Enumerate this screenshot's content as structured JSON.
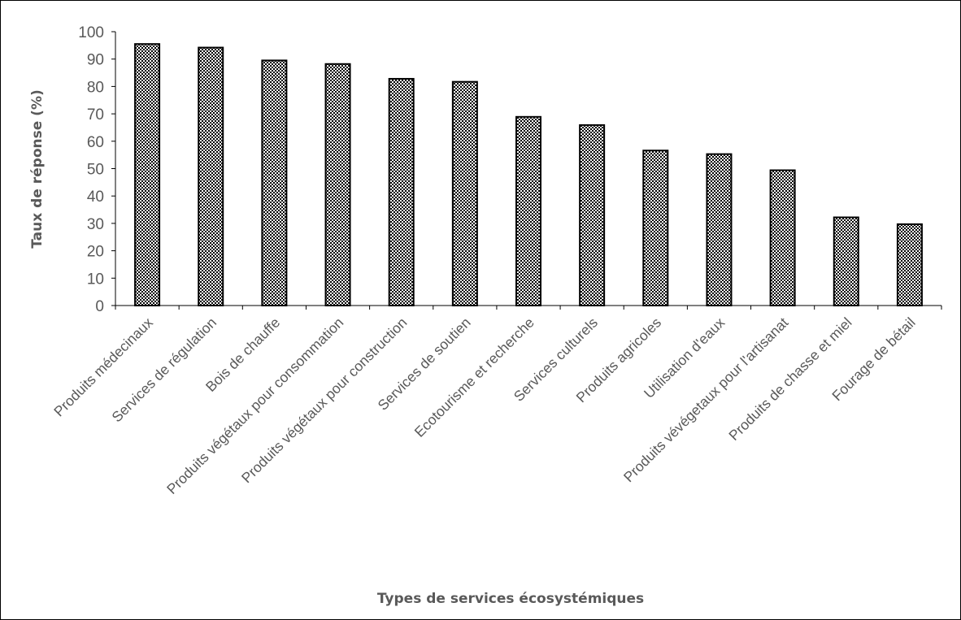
{
  "chart_data": {
    "type": "bar",
    "title": "",
    "xlabel": "Types de services écosystémiques",
    "ylabel": "Taux de réponse (%)",
    "ylim": [
      0,
      100
    ],
    "ytick_step": 10,
    "grid": false,
    "legend": "none",
    "bar_fill": "checkerboard pattern (black / white)",
    "colors": {
      "bar_dark": "#000000",
      "bar_light": "#ffffff",
      "axis": "#000000",
      "text": "#595959"
    },
    "categories": [
      "Produits médecinaux",
      "Services de régulation",
      "Bois de chauffe",
      "Produits végétaux pour consommation",
      "Produits végétaux pour construction",
      "Services de soutien",
      "Ecotourisme et recherche",
      "Services culturels",
      "Produits agricoles",
      "Utilisation d'eaux",
      "Produits vévégetaux pour l'artisanat",
      "Produits de chasse et miel",
      "Fourage de bétail"
    ],
    "values": [
      95.5,
      94.2,
      89.5,
      88.2,
      82.8,
      81.7,
      68.9,
      65.9,
      56.6,
      55.3,
      49.4,
      32.2,
      29.7
    ]
  }
}
